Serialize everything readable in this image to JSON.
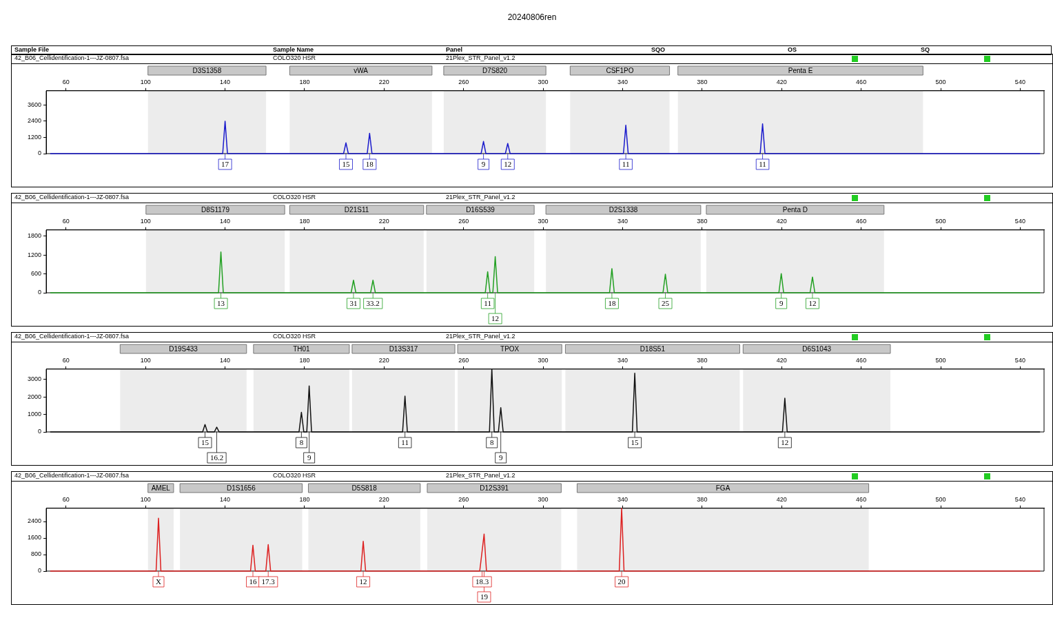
{
  "chart_data": [
    {
      "type": "other",
      "title": "20240806ren",
      "annotations": [
        "Sample File",
        "Sample Name",
        "Panel",
        "SQO",
        "OS",
        "SQ"
      ]
    },
    {
      "type": "line",
      "color": "#1a1acc",
      "xlim": [
        50,
        552
      ],
      "xticks": [
        60,
        100,
        140,
        180,
        220,
        260,
        300,
        340,
        380,
        420,
        460,
        500,
        540
      ],
      "ylim": [
        0,
        4650
      ],
      "yticks": [
        0,
        1200,
        2400,
        3600
      ],
      "grid": false,
      "legend": false,
      "x": [
        52,
        138.8,
        140,
        141.2,
        199.6,
        200.8,
        202,
        211.5,
        212.7,
        213.9,
        268.8,
        270,
        271.2,
        281,
        282.2,
        283.4,
        340.4,
        341.6,
        342.8,
        409.2,
        410.4,
        411.6,
        550
      ],
      "values": [
        0,
        0,
        2400,
        0,
        0,
        800,
        0,
        0,
        1500,
        0,
        0,
        900,
        0,
        0,
        750,
        0,
        0,
        2100,
        0,
        0,
        2200,
        0,
        0
      ],
      "bands": [
        {
          "axis": "x",
          "from": 101.2,
          "to": 160.6,
          "label": "D3S1358",
          "color": "#c8c8c8"
        },
        {
          "axis": "x",
          "from": 172.5,
          "to": 244.1,
          "label": "vWA",
          "color": "#c8c8c8"
        },
        {
          "axis": "x",
          "from": 250,
          "to": 301.4,
          "label": "D7S820",
          "color": "#c8c8c8"
        },
        {
          "axis": "x",
          "from": 313.6,
          "to": 363.6,
          "label": "CSF1PO",
          "color": "#c8c8c8"
        },
        {
          "axis": "x",
          "from": 367.8,
          "to": 491.1,
          "label": "Penta E",
          "color": "#c8c8c8"
        }
      ],
      "annotations": [
        "42_B06_Cellidentification-1---JZ-0807.fsa",
        "COLO320 HSR",
        "21Plex_STR_Panel_v1.2",
        {
          "text": "17",
          "x": 140,
          "y": 0
        },
        {
          "text": "15",
          "x": 200.8,
          "y": 0
        },
        {
          "text": "18",
          "x": 212.7,
          "y": 0
        },
        {
          "text": "9",
          "x": 270,
          "y": 0
        },
        {
          "text": "12",
          "x": 282.2,
          "y": 0
        },
        {
          "text": "11",
          "x": 341.6,
          "y": 0
        },
        {
          "text": "11",
          "x": 410.4,
          "y": 0
        }
      ]
    },
    {
      "type": "line",
      "color": "#22a022",
      "xlim": [
        50,
        552
      ],
      "xticks": [
        60,
        100,
        140,
        180,
        220,
        260,
        300,
        340,
        380,
        420,
        460,
        500,
        540
      ],
      "ylim": [
        0,
        2000
      ],
      "yticks": [
        0,
        600,
        1200,
        1800
      ],
      "grid": false,
      "legend": false,
      "x": [
        52,
        136.7,
        137.9,
        139.1,
        203.4,
        204.6,
        205.8,
        213.2,
        214.4,
        215.6,
        270.9,
        272.1,
        273.3,
        274.7,
        275.9,
        277.1,
        333.4,
        334.6,
        335.8,
        360.3,
        361.5,
        362.7,
        418.6,
        419.8,
        421,
        434.3,
        435.5,
        436.7,
        550
      ],
      "values": [
        0,
        0,
        1300,
        0,
        0,
        400,
        0,
        0,
        400,
        0,
        0,
        670,
        0,
        0,
        1150,
        0,
        0,
        770,
        0,
        0,
        590,
        0,
        0,
        610,
        0,
        0,
        500,
        0,
        0
      ],
      "bands": [
        {
          "axis": "x",
          "from": 100.2,
          "to": 170,
          "label": "D8S1179",
          "color": "#c8c8c8"
        },
        {
          "axis": "x",
          "from": 172.5,
          "to": 239.9,
          "label": "D21S11",
          "color": "#c8c8c8"
        },
        {
          "axis": "x",
          "from": 241.3,
          "to": 295.5,
          "label": "D16S539",
          "color": "#c8c8c8"
        },
        {
          "axis": "x",
          "from": 301.4,
          "to": 379.3,
          "label": "D2S1338",
          "color": "#c8c8c8"
        },
        {
          "axis": "x",
          "from": 382.1,
          "to": 471.5,
          "label": "Penta D",
          "color": "#c8c8c8"
        }
      ],
      "annotations": [
        "42_B06_Cellidentification-1---JZ-0807.fsa",
        "COLO320 HSR",
        "21Plex_STR_Panel_v1.2",
        {
          "text": "13",
          "x": 137.9,
          "y": 0
        },
        {
          "text": "31",
          "x": 204.6,
          "y": 0
        },
        {
          "text": "33.2",
          "x": 214.4,
          "y": 0
        },
        {
          "text": "11",
          "x": 272.1,
          "y": 0
        },
        {
          "text": "12",
          "x": 275.9,
          "y": 0
        },
        {
          "text": "18",
          "x": 334.6,
          "y": 0
        },
        {
          "text": "25",
          "x": 361.5,
          "y": 0
        },
        {
          "text": "9",
          "x": 419.8,
          "y": 0
        },
        {
          "text": "12",
          "x": 435.5,
          "y": 0
        }
      ]
    },
    {
      "type": "line",
      "color": "#111111",
      "xlim": [
        50,
        552
      ],
      "xticks": [
        60,
        100,
        140,
        180,
        220,
        260,
        300,
        340,
        380,
        420,
        460,
        500,
        540
      ],
      "ylim": [
        0,
        3580
      ],
      "yticks": [
        0,
        1000,
        2000,
        3000
      ],
      "grid": false,
      "legend": false,
      "x": [
        52,
        128.7,
        129.9,
        131.1,
        134.6,
        135.8,
        137,
        177.2,
        178.4,
        179.6,
        181.1,
        182.3,
        183.5,
        229.3,
        230.5,
        231.7,
        273,
        274.2,
        275.4,
        277.5,
        278.7,
        279.9,
        344.9,
        346.1,
        347.3,
        420.4,
        421.6,
        422.8,
        550
      ],
      "values": [
        0,
        0,
        420,
        0,
        0,
        270,
        0,
        0,
        1120,
        0,
        0,
        2620,
        0,
        0,
        2040,
        0,
        0,
        3580,
        0,
        0,
        1380,
        0,
        0,
        3350,
        0,
        0,
        1920,
        0,
        0
      ],
      "bands": [
        {
          "axis": "x",
          "from": 87.2,
          "to": 150.8,
          "label": "D19S433",
          "color": "#c8c8c8"
        },
        {
          "axis": "x",
          "from": 154.3,
          "to": 202.5,
          "label": "TH01",
          "color": "#c8c8c8"
        },
        {
          "axis": "x",
          "from": 203.9,
          "to": 255.6,
          "label": "D13S317",
          "color": "#c8c8c8"
        },
        {
          "axis": "x",
          "from": 257,
          "to": 309.4,
          "label": "TPOX",
          "color": "#c8c8c8"
        },
        {
          "axis": "x",
          "from": 311.2,
          "to": 398.9,
          "label": "D18S51",
          "color": "#c8c8c8"
        },
        {
          "axis": "x",
          "from": 400.6,
          "to": 474.7,
          "label": "D6S1043",
          "color": "#c8c8c8"
        }
      ],
      "annotations": [
        "42_B06_Cellidentification-1---JZ-0807.fsa",
        "COLO320 HSR",
        "21Plex_STR_Panel_v1.2",
        {
          "text": "15",
          "x": 129.9,
          "y": 0
        },
        {
          "text": "16.2",
          "x": 135.8,
          "y": 0
        },
        {
          "text": "8",
          "x": 178.4,
          "y": 0
        },
        {
          "text": "9",
          "x": 182.3,
          "y": 0
        },
        {
          "text": "11",
          "x": 230.5,
          "y": 0
        },
        {
          "text": "8",
          "x": 274.2,
          "y": 0
        },
        {
          "text": "9",
          "x": 278.7,
          "y": 0
        },
        {
          "text": "15",
          "x": 346.1,
          "y": 0
        },
        {
          "text": "12",
          "x": 421.6,
          "y": 0
        }
      ]
    },
    {
      "type": "line",
      "color": "#dd2020",
      "xlim": [
        50,
        552
      ],
      "xticks": [
        60,
        100,
        140,
        180,
        220,
        260,
        300,
        340,
        380,
        420,
        460,
        500,
        540
      ],
      "ylim": [
        0,
        3040
      ],
      "yticks": [
        0,
        800,
        1600,
        2400
      ],
      "grid": false,
      "legend": false,
      "x": [
        52,
        105.3,
        106.5,
        107.7,
        152.8,
        154,
        155.2,
        160.5,
        161.7,
        162.9,
        208.3,
        209.5,
        210.7,
        268.1,
        269.3,
        270.3,
        271.5,
        338.3,
        339.5,
        340.7,
        550
      ],
      "values": [
        0,
        0,
        2560,
        0,
        0,
        1250,
        0,
        0,
        1280,
        0,
        0,
        1440,
        0,
        0,
        960,
        1790,
        0,
        0,
        3040,
        0,
        0
      ],
      "bands": [
        {
          "axis": "x",
          "from": 101.2,
          "to": 114.1,
          "label": "AMEL",
          "color": "#c8c8c8"
        },
        {
          "axis": "x",
          "from": 117.3,
          "to": 178.8,
          "label": "D1S1656",
          "color": "#c8c8c8"
        },
        {
          "axis": "x",
          "from": 181.9,
          "to": 238.2,
          "label": "D5S818",
          "color": "#c8c8c8"
        },
        {
          "axis": "x",
          "from": 241.7,
          "to": 309.1,
          "label": "D12S391",
          "color": "#c8c8c8"
        },
        {
          "axis": "x",
          "from": 317.1,
          "to": 463.8,
          "label": "FGA",
          "color": "#c8c8c8"
        }
      ],
      "annotations": [
        "42_B06_Cellidentification-1---JZ-0807.fsa",
        "COLO320 HSR",
        "21Plex_STR_Panel_v1.2",
        {
          "text": "X",
          "x": 106.5,
          "y": 0
        },
        {
          "text": "16",
          "x": 154,
          "y": 0
        },
        {
          "text": "17.3",
          "x": 161.7,
          "y": 0
        },
        {
          "text": "12",
          "x": 209.5,
          "y": 0
        },
        {
          "text": "18.3",
          "x": 269.3,
          "y": 0
        },
        {
          "text": "19",
          "x": 270.3,
          "y": 0
        },
        {
          "text": "20",
          "x": 339.5,
          "y": 0
        }
      ]
    }
  ]
}
